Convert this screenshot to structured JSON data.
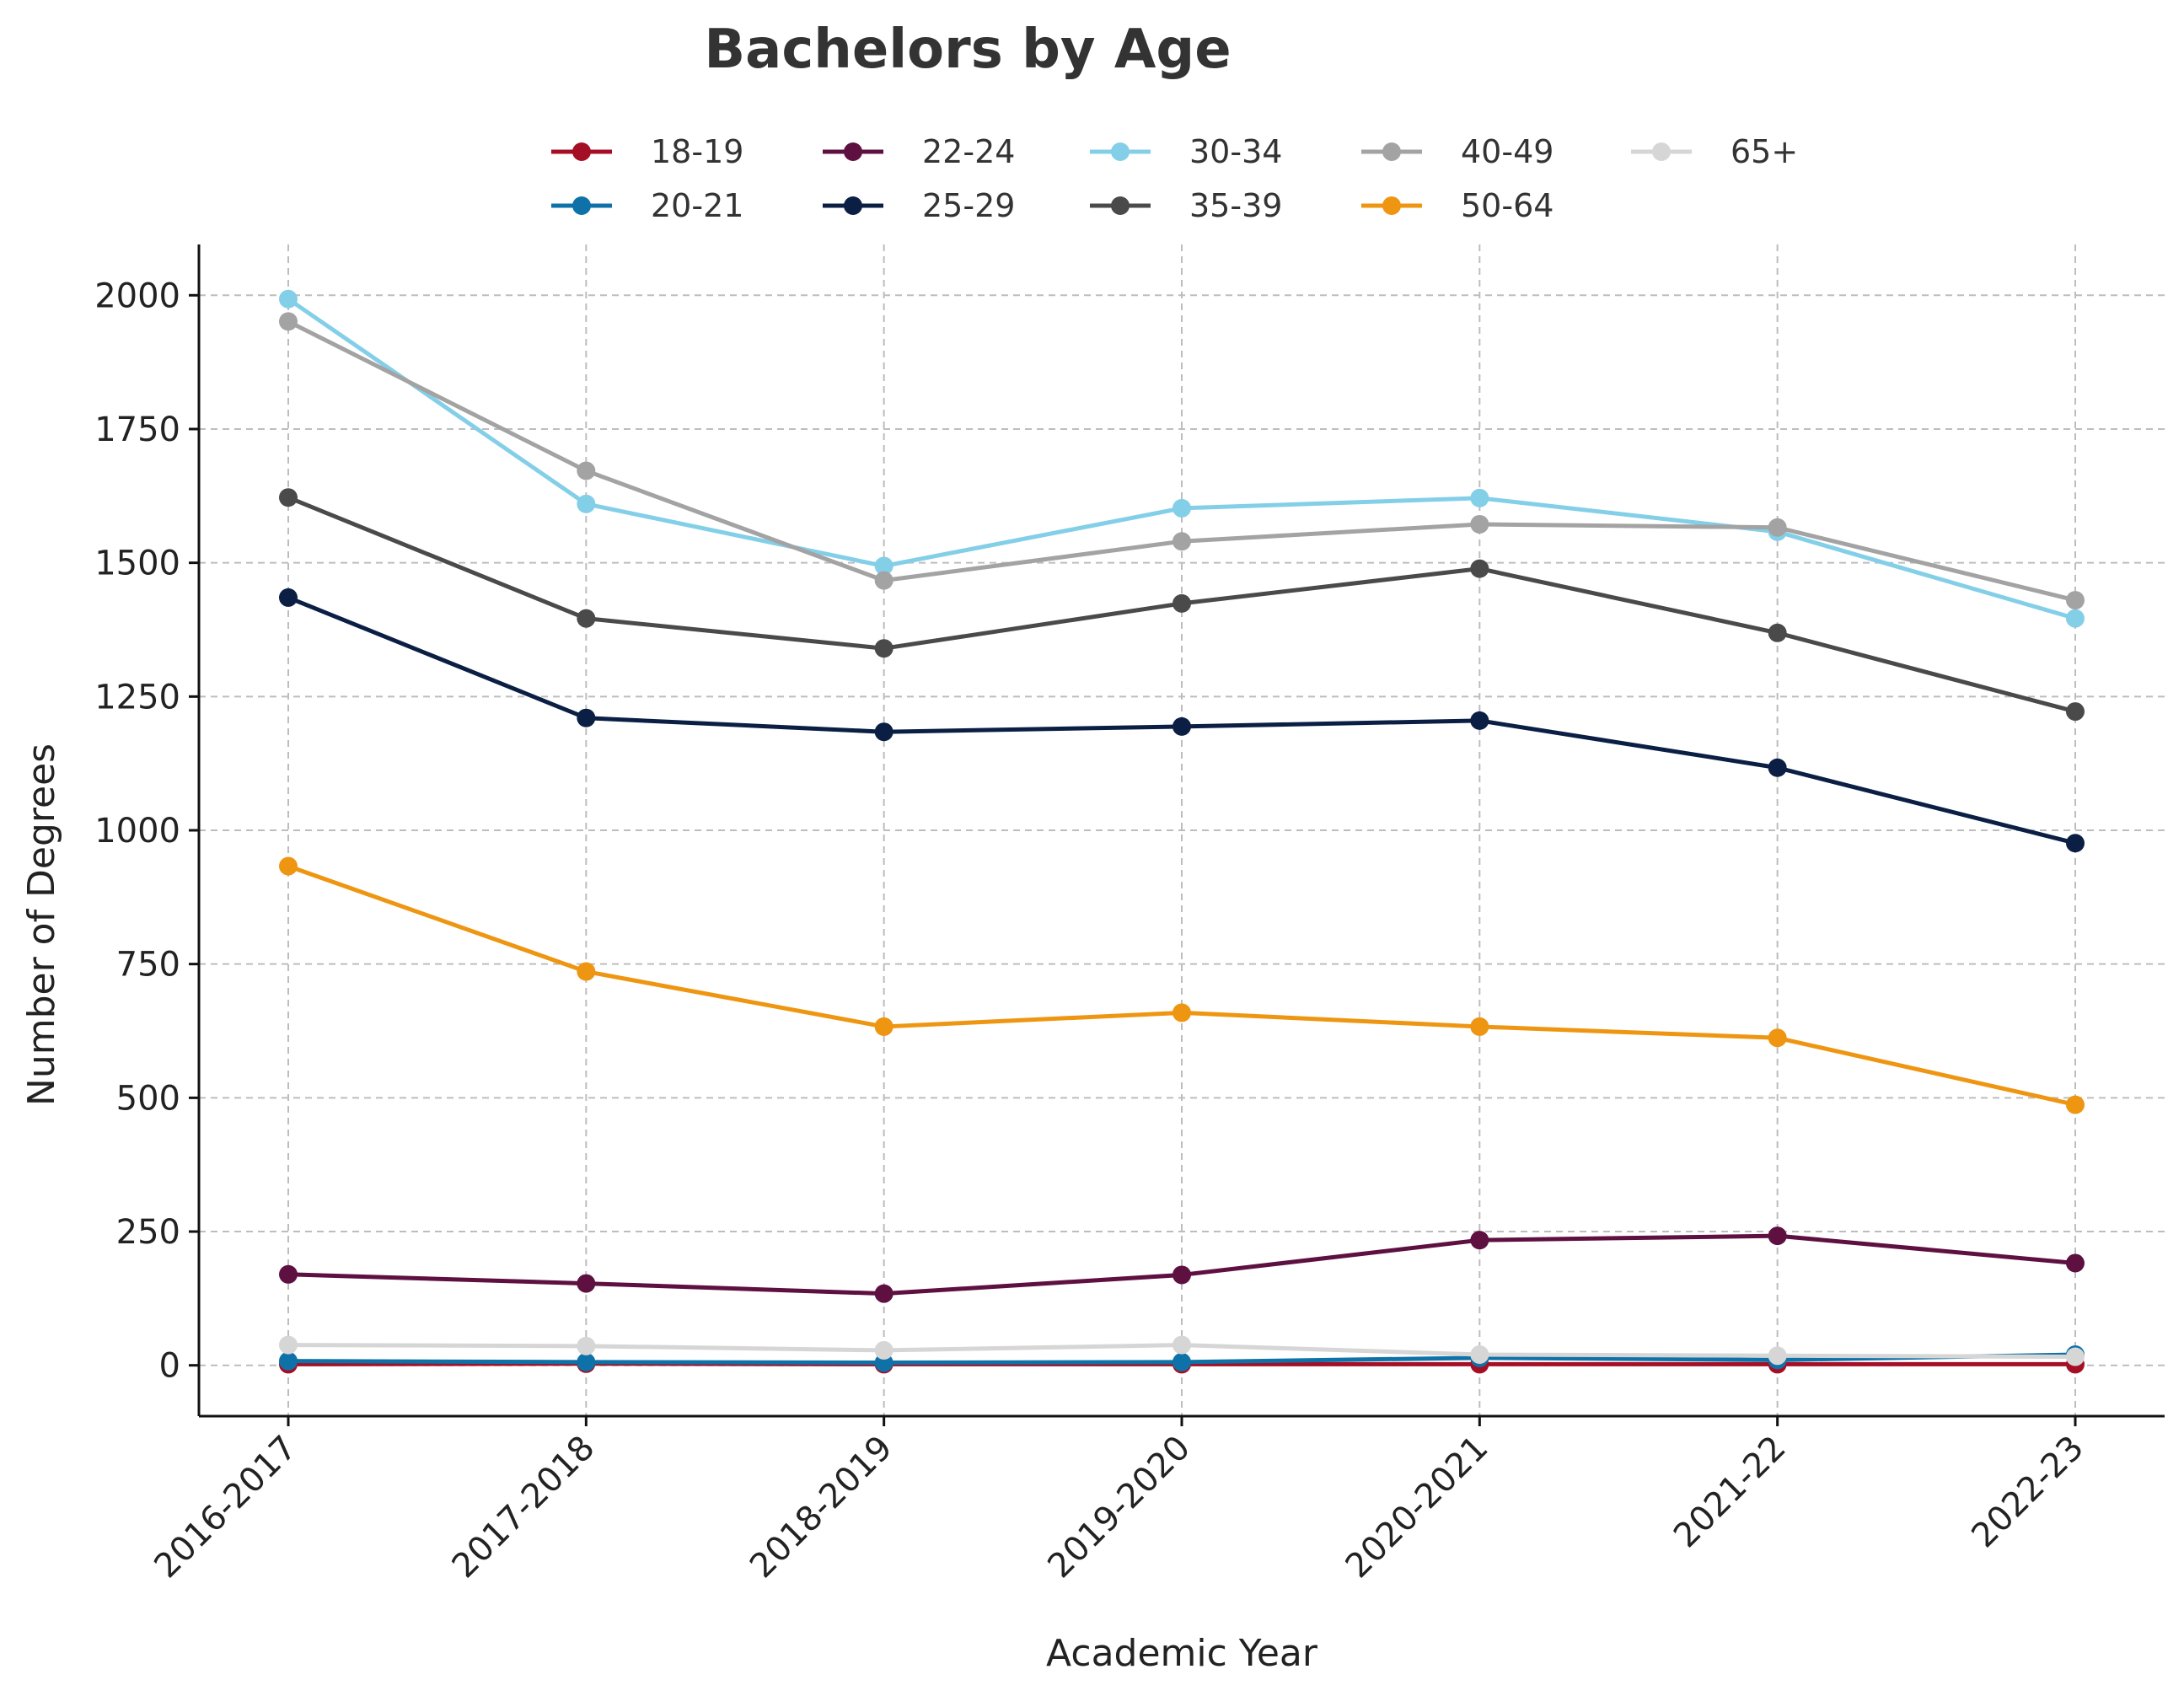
{
  "chart_data": {
    "type": "line",
    "title": "Bachelors by Age",
    "xlabel": "Academic Year",
    "ylabel": "Number of Degrees",
    "categories": [
      "2016-2017",
      "2017-2018",
      "2018-2019",
      "2019-2020",
      "2020-2021",
      "2021-22",
      "2022-23"
    ],
    "ylim": [
      -95,
      2095
    ],
    "yticks": [
      0,
      250,
      500,
      750,
      1000,
      1250,
      1500,
      1750,
      2000
    ],
    "grid": true,
    "legend_position": "top-center",
    "series": [
      {
        "name": "18-19",
        "color": "#a50f26",
        "values": [
          2,
          3,
          2,
          2,
          2,
          2,
          2
        ]
      },
      {
        "name": "20-21",
        "color": "#0e72a8",
        "values": [
          8,
          6,
          5,
          6,
          14,
          10,
          20
        ]
      },
      {
        "name": "22-24",
        "color": "#5e1041",
        "values": [
          170,
          153,
          134,
          169,
          234,
          242,
          191
        ]
      },
      {
        "name": "25-29",
        "color": "#0b1f45",
        "values": [
          1435,
          1210,
          1184,
          1194,
          1205,
          1117,
          976
        ]
      },
      {
        "name": "30-34",
        "color": "#84cfe8",
        "values": [
          1993,
          1610,
          1494,
          1602,
          1621,
          1558,
          1396
        ]
      },
      {
        "name": "35-39",
        "color": "#4a4a4a",
        "values": [
          1622,
          1396,
          1340,
          1424,
          1489,
          1369,
          1222
        ]
      },
      {
        "name": "40-49",
        "color": "#a3a3a3",
        "values": [
          1951,
          1672,
          1467,
          1540,
          1572,
          1566,
          1430
        ]
      },
      {
        "name": "50-64",
        "color": "#ee9611",
        "values": [
          933,
          736,
          633,
          659,
          633,
          612,
          487
        ]
      },
      {
        "name": "65+",
        "color": "#d6d6d6",
        "values": [
          38,
          36,
          28,
          38,
          20,
          18,
          16
        ]
      }
    ]
  }
}
